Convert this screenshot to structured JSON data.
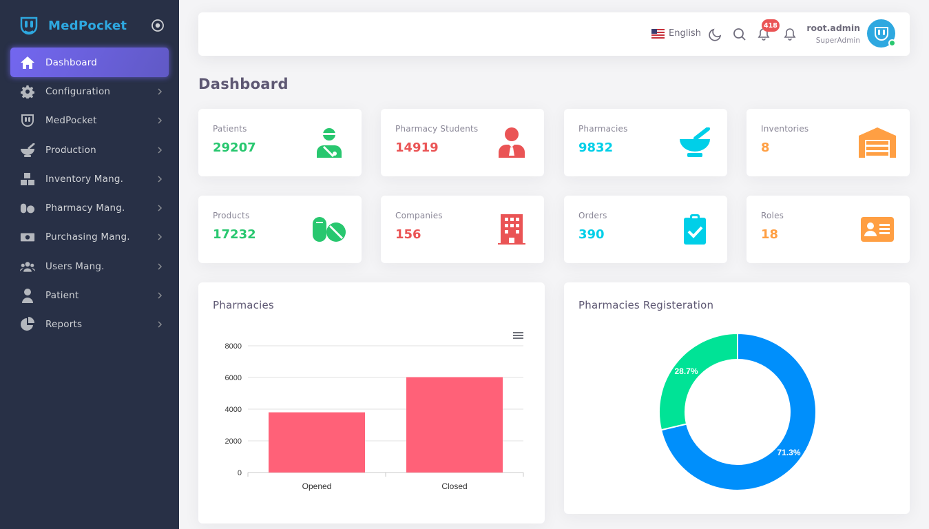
{
  "brand": {
    "name": "MedPocket"
  },
  "sidebar": {
    "items": [
      {
        "label": "Dashboard",
        "icon": "home-icon",
        "active": true
      },
      {
        "label": "Configuration",
        "icon": "gear-icon"
      },
      {
        "label": "MedPocket",
        "icon": "medpocket-icon"
      },
      {
        "label": "Production",
        "icon": "mortar-icon"
      },
      {
        "label": "Inventory Mang.",
        "icon": "boxes-icon"
      },
      {
        "label": "Pharmacy Mang.",
        "icon": "pills-icon"
      },
      {
        "label": "Purchasing Mang.",
        "icon": "money-icon"
      },
      {
        "label": "Users Mang.",
        "icon": "users-icon"
      },
      {
        "label": "Patient",
        "icon": "patient-icon"
      },
      {
        "label": "Reports",
        "icon": "pie-icon"
      }
    ]
  },
  "navbar": {
    "language": "English",
    "notification_count": "418",
    "user": {
      "name": "root.admin",
      "role": "SuperAdmin"
    }
  },
  "page": {
    "title": "Dashboard"
  },
  "stats": [
    {
      "label": "Patients",
      "value": "29207",
      "color": "#28c76f",
      "icon": "patient-icon"
    },
    {
      "label": "Pharmacy Students",
      "value": "14919",
      "color": "#ea5455",
      "icon": "student-icon"
    },
    {
      "label": "Pharmacies",
      "value": "9832",
      "color": "#00cfe8",
      "icon": "mortar-icon"
    },
    {
      "label": "Inventories",
      "value": "8",
      "color": "#ff9f43",
      "icon": "warehouse-icon"
    },
    {
      "label": "Products",
      "value": "17232",
      "color": "#28c76f",
      "icon": "pills-icon"
    },
    {
      "label": "Companies",
      "value": "156",
      "color": "#ea5455",
      "icon": "building-icon"
    },
    {
      "label": "Orders",
      "value": "390",
      "color": "#00cfe8",
      "icon": "clipboard-check-icon"
    },
    {
      "label": "Roles",
      "value": "18",
      "color": "#ff9f43",
      "icon": "id-card-icon"
    }
  ],
  "chart_data": [
    {
      "type": "bar",
      "title": "Pharmacies",
      "categories": [
        "Opened",
        "Closed"
      ],
      "values": [
        3800,
        6020
      ],
      "ylim": [
        0,
        8000
      ],
      "yticks": [
        0,
        2000,
        4000,
        6000,
        8000
      ],
      "grid": true,
      "color": "#ff6178"
    },
    {
      "type": "pie",
      "title": "Pharmacies Registeration",
      "donut": true,
      "values": [
        71.3,
        28.7
      ],
      "labels": [
        "71.3%",
        "28.7%"
      ],
      "colors": [
        "#008ffb",
        "#00e396"
      ]
    }
  ]
}
